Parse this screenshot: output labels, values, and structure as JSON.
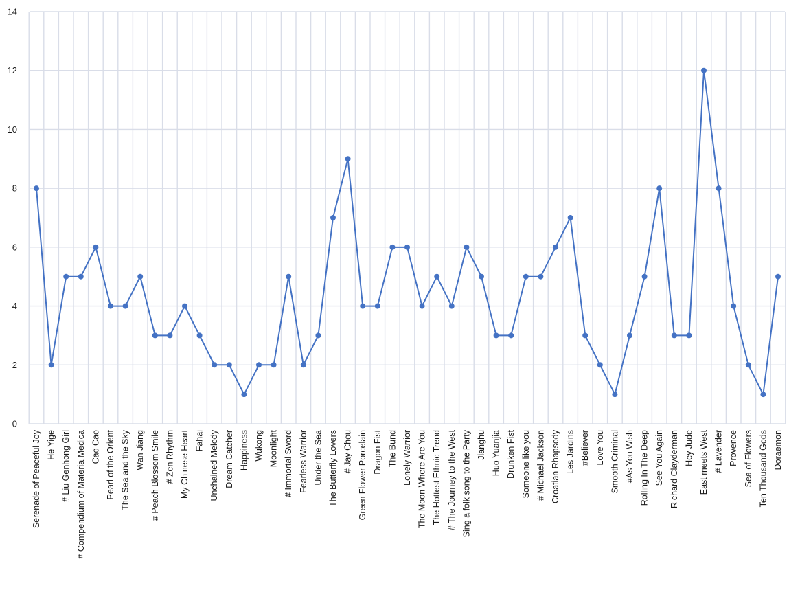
{
  "chart_data": {
    "type": "line",
    "title": "",
    "xlabel": "",
    "ylabel": "",
    "ylim": [
      0,
      14
    ],
    "yticks": [
      0,
      2,
      4,
      6,
      8,
      10,
      12,
      14
    ],
    "grid": true,
    "legend": "none",
    "colors": {
      "series": "#4472c4",
      "grid": "#d9dde8"
    },
    "categories": [
      "Serenade of Peaceful Joy",
      "He Yige",
      "# Liu Genhong Girl",
      "# Compendium of Materia Medica",
      "Cao Cao",
      "Pearl of the Orient",
      "The Sea and the Sky",
      "Wan Jiang",
      "# Peach Blossom Smile",
      "# Zen Rhythm",
      "My Chinese Heart",
      "Fahai",
      "Unchained Melody",
      "Dream Catcher",
      "Happiness",
      "Wukong",
      "Moonlight",
      "# Immortal Sword",
      "Fearless Warrior",
      "Under the Sea",
      "The Butterfly Lovers",
      "# Jay Chou",
      "Green Flower Porcelain",
      "Dragon Fist",
      "The Bund",
      "Lonely Warrior",
      "The Moon Where Are You",
      "The Hottest Ethnic Trend",
      "# The Journey to the West",
      "Sing a folk song to the Party",
      "Jianghu",
      "Huo Yuanjia",
      "Drunken Fist",
      "Someone like you",
      "# Michael Jackson",
      "Croatian Rhapsody",
      "Les Jardins",
      "#Believer",
      "Love You",
      "Smooth Criminal",
      "#As You Wish",
      "Rolling In The Deep",
      "See You Again",
      "Richard Clayderman",
      "Hey Jude",
      "East meets West",
      "# Lavender",
      "Provence",
      "Sea of Flowers",
      "Ten Thousand Gods",
      "Doraemon"
    ],
    "series": [
      {
        "values": [
          8,
          2,
          5,
          5,
          6,
          4,
          4,
          5,
          3,
          3,
          4,
          3,
          2,
          2,
          1,
          2,
          2,
          5,
          2,
          3,
          7,
          9,
          4,
          4,
          6,
          6,
          4,
          5,
          4,
          6,
          5,
          3,
          3,
          5,
          5,
          6,
          7,
          3,
          2,
          1,
          3,
          5,
          8,
          3,
          3,
          12,
          8,
          4,
          2,
          1,
          5
        ]
      }
    ]
  }
}
